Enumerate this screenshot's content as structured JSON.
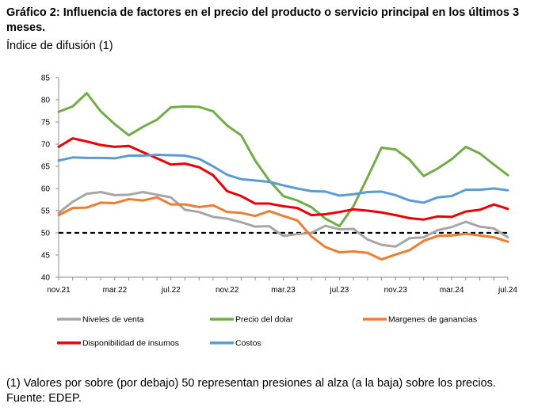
{
  "chart_data": {
    "type": "line",
    "title": "Gráfico 2: Influencia de factores en el precio del producto o servicio principal en los últimos 3 meses.",
    "subtitle": "Índice de difusión (1)",
    "ylim": [
      40,
      85
    ],
    "yticks": [
      40,
      45,
      50,
      55,
      60,
      65,
      70,
      75,
      80,
      85
    ],
    "x_tick_labels": [
      "nov.21",
      "mar.22",
      "jul.22",
      "nov.22",
      "mar.23",
      "jul.23",
      "nov.23",
      "mar.24",
      "jul.24"
    ],
    "x": [
      "nov.21",
      "dic.21",
      "ene.22",
      "feb.22",
      "mar.22",
      "abr.22",
      "may.22",
      "jun.22",
      "jul.22",
      "ago.22",
      "sep.22",
      "oct.22",
      "nov.22",
      "dic.22",
      "ene.23",
      "feb.23",
      "mar.23",
      "abr.23",
      "may.23",
      "jun.23",
      "jul.23",
      "ago.23",
      "sep.23",
      "oct.23",
      "nov.23",
      "dic.23",
      "ene.24",
      "feb.24",
      "mar.24",
      "abr.24",
      "may.24",
      "jun.24",
      "jul.24"
    ],
    "reference_line": {
      "value": 50,
      "style": "dashed",
      "color": "#000000"
    },
    "series": [
      {
        "name": "Niveles de venta",
        "color": "#a6a6a6",
        "values": [
          54.5,
          57,
          58.8,
          59.2,
          58.5,
          58.6,
          59.2,
          58.6,
          58.0,
          55.2,
          54.7,
          53.6,
          53.2,
          52.4,
          51.4,
          51.5,
          49.3,
          49.7,
          50.0,
          51.6,
          50.8,
          50.9,
          48.5,
          47.3,
          46.9,
          48.8,
          49.0,
          50.6,
          51.3,
          52.5,
          51.4,
          51.0,
          49.0
        ]
      },
      {
        "name": "Precio del dolar",
        "color": "#70ad47",
        "values": [
          77.3,
          78.5,
          81.5,
          77.4,
          74.5,
          72.0,
          73.9,
          75.5,
          78.3,
          78.5,
          78.4,
          77.4,
          74.2,
          72.0,
          66.3,
          61.8,
          58.3,
          57.3,
          55.8,
          53.2,
          51.5,
          56.0,
          62.5,
          69.2,
          68.8,
          66.5,
          62.8,
          64.5,
          66.6,
          69.4,
          67.9,
          65.4,
          63.0
        ]
      },
      {
        "name": "Margenes de ganancias",
        "color": "#ed7d31",
        "values": [
          54.0,
          55.6,
          55.7,
          56.8,
          56.7,
          57.6,
          57.3,
          58.0,
          56.4,
          56.4,
          55.8,
          56.2,
          54.7,
          54.5,
          53.8,
          54.9,
          53.8,
          52.8,
          49.2,
          46.8,
          45.6,
          45.8,
          45.5,
          44.0,
          45.1,
          46.1,
          48.2,
          49.3,
          49.4,
          49.8,
          49.4,
          49.0,
          48.0
        ]
      },
      {
        "name": "Disponibilidad de insumos",
        "color": "#ee0000",
        "values": [
          69.4,
          71.3,
          70.6,
          69.8,
          69.4,
          69.6,
          68.2,
          66.8,
          65.4,
          65.6,
          64.8,
          63.0,
          59.4,
          58.3,
          56.6,
          56.6,
          56.0,
          55.6,
          54.0,
          54.2,
          54.7,
          55.3,
          55.0,
          54.6,
          54.0,
          53.3,
          53.0,
          53.7,
          53.6,
          54.8,
          55.2,
          56.4,
          55.4
        ]
      },
      {
        "name": "Costos",
        "color": "#5b9bd5",
        "values": [
          66.3,
          67.0,
          66.9,
          66.9,
          66.8,
          67.4,
          67.4,
          67.6,
          67.5,
          67.4,
          66.7,
          65.0,
          63.1,
          62.1,
          61.8,
          61.5,
          60.7,
          60.0,
          59.4,
          59.3,
          58.4,
          58.7,
          59.2,
          59.3,
          58.5,
          57.3,
          56.8,
          58.0,
          58.3,
          59.7,
          59.7,
          60.0,
          59.6
        ]
      }
    ]
  },
  "notes": {
    "footnote": "(1) Valores por sobre (por debajo) 50 representan presiones al alza (a la baja) sobre los precios.",
    "source": "Fuente: EDEP."
  }
}
